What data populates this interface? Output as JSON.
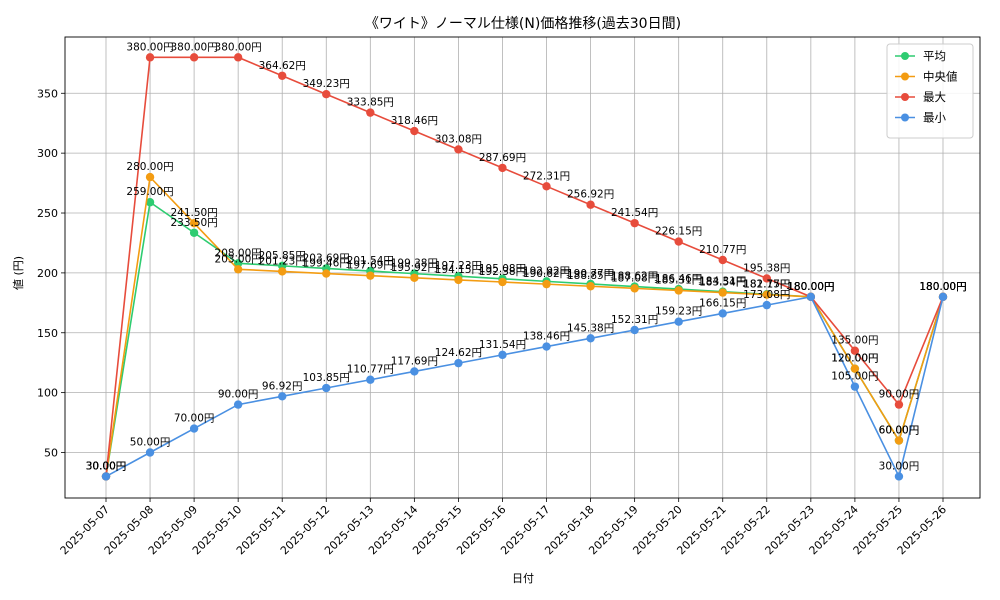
{
  "chart_data": {
    "type": "line",
    "title": "《ワイト》ノーマル仕様(N)価格推移(過去30日間)",
    "xlabel": "日付",
    "ylabel": "値 (円)",
    "categories": [
      "2025-05-07",
      "2025-05-08",
      "2025-05-09",
      "2025-05-10",
      "2025-05-11",
      "2025-05-12",
      "2025-05-13",
      "2025-05-14",
      "2025-05-15",
      "2025-05-16",
      "2025-05-17",
      "2025-05-18",
      "2025-05-19",
      "2025-05-20",
      "2025-05-21",
      "2025-05-22",
      "2025-05-23",
      "2025-05-24",
      "2025-05-25",
      "2025-05-26"
    ],
    "ylim": [
      12,
      397
    ],
    "yticks": [
      50,
      100,
      150,
      200,
      250,
      300,
      350
    ],
    "grid": true,
    "legend_position": "top-right",
    "value_suffix": "円",
    "series": [
      {
        "name": "平均",
        "color": "#2ecc71",
        "values": [
          30.0,
          259.0,
          233.5,
          208.0,
          205.85,
          203.69,
          201.54,
          199.38,
          197.23,
          195.08,
          192.92,
          190.77,
          188.62,
          186.46,
          184.31,
          182.15,
          180.0,
          120.0,
          60.0,
          180.0
        ]
      },
      {
        "name": "中央値",
        "color": "#f39c12",
        "values": [
          30.0,
          280.0,
          241.5,
          203.0,
          201.23,
          199.46,
          197.69,
          195.92,
          194.15,
          192.38,
          190.62,
          188.85,
          187.08,
          185.31,
          183.54,
          181.77,
          180.0,
          120.0,
          60.0,
          180.0
        ]
      },
      {
        "name": "最大",
        "color": "#e74c3c",
        "values": [
          30.0,
          380.0,
          380.0,
          380.0,
          364.62,
          349.23,
          333.85,
          318.46,
          303.08,
          287.69,
          272.31,
          256.92,
          241.54,
          226.15,
          210.77,
          195.38,
          180.0,
          135.0,
          90.0,
          180.0
        ]
      },
      {
        "name": "最小",
        "color": "#4a90e2",
        "values": [
          30.0,
          50.0,
          70.0,
          90.0,
          96.92,
          103.85,
          110.77,
          117.69,
          124.62,
          131.54,
          138.46,
          145.38,
          152.31,
          159.23,
          166.15,
          173.08,
          180.0,
          105.0,
          30.0,
          180.0
        ]
      }
    ]
  }
}
